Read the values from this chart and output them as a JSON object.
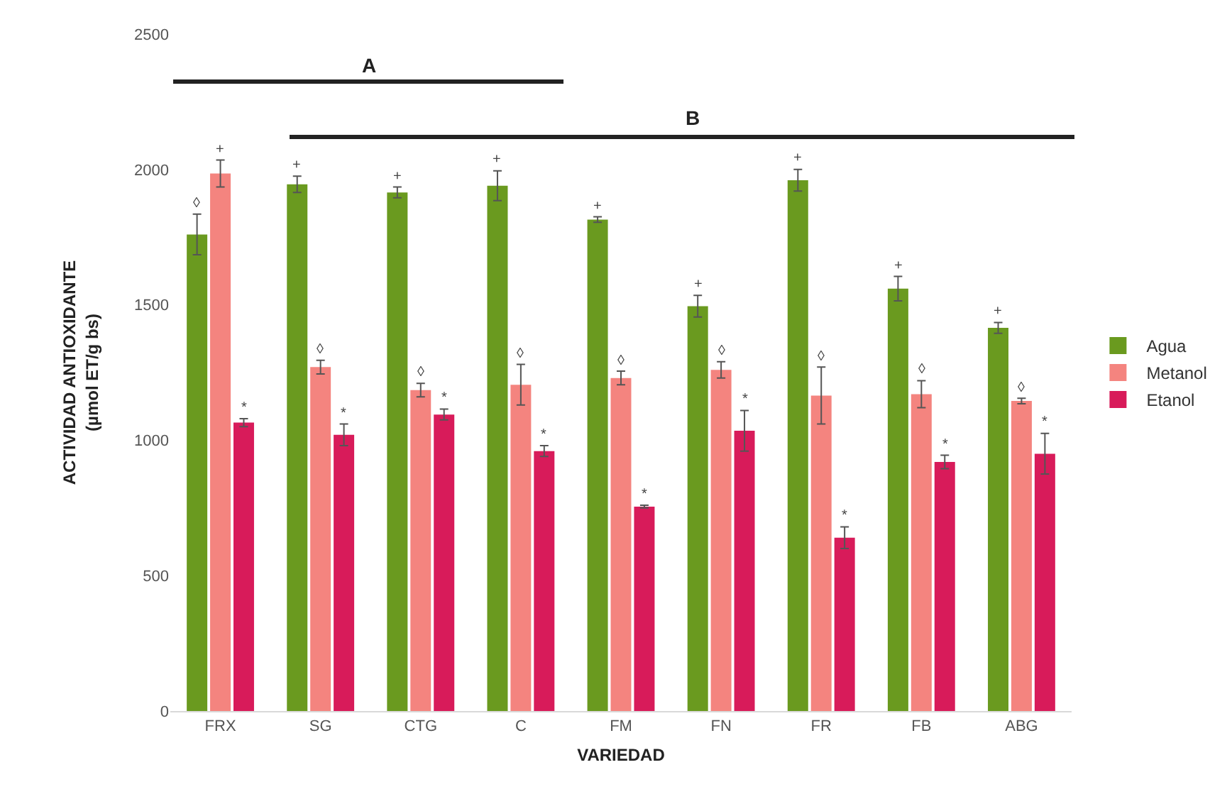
{
  "chart_data": {
    "type": "bar",
    "xlabel": "VARIEDAD",
    "ylabel": "ACTIVIDAD ANTIOXIDANTE\n(µmol ET/g bs)",
    "categories": [
      "FRX",
      "SG",
      "CTG",
      "C",
      "FM",
      "FN",
      "FR",
      "FB",
      "ABG"
    ],
    "series": [
      {
        "name": "Agua",
        "color": "#6a9a1f",
        "values": [
          1760,
          1945,
          1915,
          1940,
          1815,
          1495,
          1960,
          1560,
          1415
        ],
        "errors": [
          75,
          30,
          20,
          55,
          10,
          40,
          40,
          45,
          20
        ],
        "value_labels": [
          "◊",
          "+",
          "+",
          "+",
          "+",
          "+",
          "+",
          "+",
          "+"
        ]
      },
      {
        "name": "Metanol",
        "color": "#f4847f",
        "values": [
          1985,
          1270,
          1185,
          1205,
          1230,
          1260,
          1165,
          1170,
          1145
        ],
        "errors": [
          50,
          25,
          25,
          75,
          25,
          30,
          105,
          50,
          10
        ],
        "value_labels": [
          "+",
          "◊",
          "◊",
          "◊",
          "◊",
          "◊",
          "◊",
          "◊",
          "◊"
        ]
      },
      {
        "name": "Etanol",
        "color": "#d81b5a",
        "values": [
          1065,
          1020,
          1095,
          960,
          755,
          1035,
          640,
          920,
          950
        ],
        "errors": [
          15,
          40,
          20,
          20,
          5,
          75,
          40,
          25,
          75
        ],
        "value_labels": [
          "*",
          "*",
          "*",
          "*",
          "*",
          "*",
          "*",
          "*",
          "*"
        ]
      }
    ],
    "ylim": [
      0,
      2500
    ],
    "yticks": [
      0,
      500,
      1000,
      1500,
      2000,
      2500
    ],
    "grid": false,
    "legend": "right",
    "annotations": [
      "A",
      "B"
    ]
  }
}
